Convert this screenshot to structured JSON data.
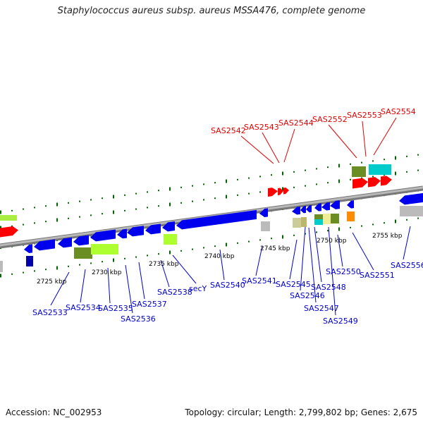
{
  "title": "Staphylococcus aureus subsp. aureus MSSA476, complete genome",
  "footer": {
    "accession": "Accession: NC_002953",
    "summary": "Topology: circular; Length: 2,799,802 bp; Genes: 2,675"
  },
  "colors": {
    "forward_gene": "#ff0000",
    "reverse_gene": "#0000ee",
    "label_top": "#e00000",
    "label_bottom": "#0000cc",
    "tick": "#006400",
    "backbone": "#999999"
  },
  "scale_labels": [
    "2725 kbp",
    "2730 kbp",
    "2735 kbp",
    "2740 kbp",
    "2745 kbp",
    "2750 kbp",
    "2755 kbp"
  ],
  "top_gene_labels": [
    "SAS2542",
    "SAS2543",
    "SAS2544",
    "SAS2552",
    "SAS2553",
    "SAS2554"
  ],
  "bottom_gene_labels": [
    "SAS2533",
    "SAS2534",
    "SAS2535",
    "SAS2536",
    "SAS2537",
    "SAS2538",
    "secY",
    "SAS2540",
    "SAS2541",
    "SAS2545",
    "SAS2546",
    "SAS2547",
    "SAS2548",
    "SAS2549",
    "SAS2550",
    "SAS2551",
    "SAS2556"
  ]
}
